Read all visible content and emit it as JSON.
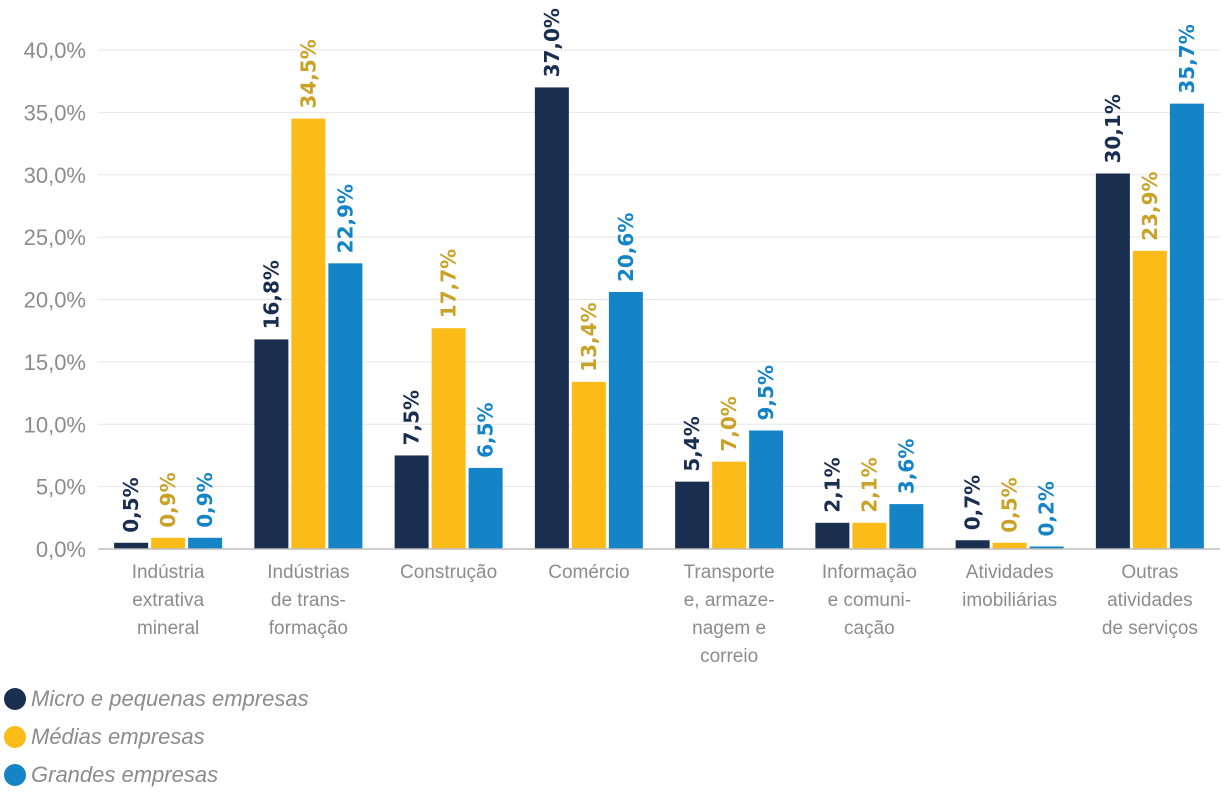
{
  "chart_data": {
    "type": "bar",
    "categories": [
      [
        "Indústria",
        "extrativa",
        "mineral"
      ],
      [
        "Indústrias",
        "de trans-",
        "formação"
      ],
      [
        "Construção"
      ],
      [
        "Comércio"
      ],
      [
        "Transporte",
        "e, armaze-",
        "nagem e",
        "correio"
      ],
      [
        "Informação",
        "e comuni-",
        "cação"
      ],
      [
        "Atividades",
        "imobiliárias"
      ],
      [
        "Outras",
        "atividades",
        "de serviços"
      ]
    ],
    "series": [
      {
        "name": "Micro e pequenas empresas",
        "color": "#1a2e4f",
        "values": [
          0.5,
          16.8,
          7.5,
          37.0,
          5.4,
          2.1,
          0.7,
          30.1
        ],
        "labels": [
          "0,5%",
          "16,8%",
          "7,5%",
          "37,0%",
          "5,4%",
          "2,1%",
          "0,7%",
          "30,1%"
        ],
        "label_color": "#1a2e4f"
      },
      {
        "name": "Médias empresas",
        "color": "#fbbc1a",
        "values": [
          0.9,
          34.5,
          17.7,
          13.4,
          7.0,
          2.1,
          0.5,
          23.9
        ],
        "labels": [
          "0,9%",
          "34,5%",
          "17,7%",
          "13,4%",
          "7,0%",
          "2,1%",
          "0,5%",
          "23,9%"
        ],
        "label_color": "#c9a227"
      },
      {
        "name": "Grandes empresas",
        "color": "#1484c7",
        "values": [
          0.9,
          22.9,
          6.5,
          20.6,
          9.5,
          3.6,
          0.2,
          35.7
        ],
        "labels": [
          "0,9%",
          "22,9%",
          "6,5%",
          "20,6%",
          "9,5%",
          "3,6%",
          "0,2%",
          "35,7%"
        ],
        "label_color": "#1484c7"
      }
    ],
    "yticks": [
      0,
      5,
      10,
      15,
      20,
      25,
      30,
      35,
      40
    ],
    "ytick_labels": [
      "0,0%",
      "5,0%",
      "10,0%",
      "15,0%",
      "20,0%",
      "25,0%",
      "30,0%",
      "35,0%",
      "40,0%"
    ],
    "ylim": [
      0,
      40
    ],
    "grid": true,
    "legend_position": "bottom-left",
    "title": "",
    "xlabel": "",
    "ylabel": ""
  }
}
